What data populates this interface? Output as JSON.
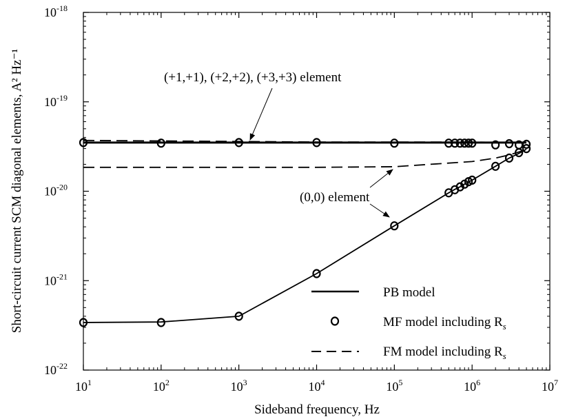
{
  "chart_data": {
    "type": "line",
    "xscale": "log",
    "yscale": "log",
    "xlim": [
      10,
      10000000
    ],
    "ylim": [
      1e-22,
      1e-18
    ],
    "xlabel": "Sideband frequency, Hz",
    "ylabel": "Short-circuit current SCM diagonal elements, A² Hz⁻¹",
    "grid": false,
    "legend_position": "bottom-right",
    "x_ticks": [
      {
        "value": 10,
        "base": "10",
        "exp": "1"
      },
      {
        "value": 100,
        "base": "10",
        "exp": "2"
      },
      {
        "value": 1000,
        "base": "10",
        "exp": "3"
      },
      {
        "value": 10000,
        "base": "10",
        "exp": "4"
      },
      {
        "value": 100000,
        "base": "10",
        "exp": "5"
      },
      {
        "value": 1000000,
        "base": "10",
        "exp": "6"
      },
      {
        "value": 10000000,
        "base": "10",
        "exp": "7"
      }
    ],
    "y_ticks": [
      {
        "value": 1e-22,
        "base": "10",
        "exp": "-22"
      },
      {
        "value": 1e-21,
        "base": "10",
        "exp": "-21"
      },
      {
        "value": 1e-20,
        "base": "10",
        "exp": "-20"
      },
      {
        "value": 1e-19,
        "base": "10",
        "exp": "-19"
      },
      {
        "value": 1e-18,
        "base": "10",
        "exp": "-18"
      }
    ],
    "series": [
      {
        "name": "PB model",
        "style": "solid",
        "curves": [
          {
            "x": [
              10,
              100,
              1000,
              10000,
              100000,
              500000,
              1000000,
              2000000,
              3000000,
              4000000,
              5000000
            ],
            "y": [
              3.5e-20,
              3.5e-20,
              3.5e-20,
              3.5e-20,
              3.5e-20,
              3.5e-20,
              3.5e-20,
              3.5e-20,
              3.5e-20,
              3.5e-20,
              3.5e-20
            ]
          },
          {
            "x": [
              10,
              100,
              1000,
              10000,
              100000,
              500000,
              600000,
              700000,
              800000,
              900000,
              1000000,
              2000000,
              3000000,
              4000000,
              5000000
            ],
            "y": [
              3.4e-22,
              3.45e-22,
              4e-22,
              1.2e-21,
              4.1e-21,
              9.6e-21,
              1.05e-20,
              1.12e-20,
              1.2e-20,
              1.27e-20,
              1.33e-20,
              1.9e-20,
              2.35e-20,
              2.65e-20,
              2.95e-20
            ]
          }
        ]
      },
      {
        "name": "MF model including Rs",
        "style": "markers",
        "curves": [
          {
            "x": [
              10,
              100,
              1000,
              10000,
              100000,
              500000,
              600000,
              700000,
              800000,
              900000,
              1000000,
              2000000,
              3000000,
              4000000,
              5000000
            ],
            "y": [
              3.5e-20,
              3.45e-20,
              3.5e-20,
              3.5e-20,
              3.45e-20,
              3.45e-20,
              3.45e-20,
              3.45e-20,
              3.45e-20,
              3.45e-20,
              3.45e-20,
              3.3e-20,
              3.4e-20,
              3.3e-20,
              3.35e-20
            ]
          },
          {
            "x": [
              10,
              100,
              1000,
              10000,
              100000,
              500000,
              600000,
              700000,
              800000,
              900000,
              1000000,
              2000000,
              3000000,
              4000000,
              5000000
            ],
            "y": [
              3.4e-22,
              3.4e-22,
              4e-22,
              1.2e-21,
              4.1e-21,
              9.6e-21,
              1.04e-20,
              1.12e-20,
              1.2e-20,
              1.28e-20,
              1.33e-20,
              1.9e-20,
              2.35e-20,
              2.7e-20,
              3e-20
            ]
          }
        ]
      },
      {
        "name": "FM model including Rs",
        "style": "dashed",
        "curves": [
          {
            "x": [
              10,
              100,
              1000,
              10000,
              100000,
              1000000,
              3000000,
              5000000
            ],
            "y": [
              3.7e-20,
              3.65e-20,
              3.6e-20,
              3.55e-20,
              3.55e-20,
              3.55e-20,
              3.5e-20,
              3.5e-20
            ]
          },
          {
            "x": [
              10,
              100,
              1000,
              10000,
              100000,
              1000000,
              2000000,
              3000000,
              4000000,
              5000000
            ],
            "y": [
              1.85e-20,
              1.85e-20,
              1.85e-20,
              1.85e-20,
              1.88e-20,
              2.15e-20,
              2.35e-20,
              2.55e-20,
              2.75e-20,
              2.9e-20
            ]
          }
        ]
      }
    ],
    "legend": [
      {
        "text": "PB model",
        "sub": "",
        "style": "solid"
      },
      {
        "text": "MF model including R",
        "sub": "s",
        "style": "marker"
      },
      {
        "text": "FM model including R",
        "sub": "s",
        "style": "dashed"
      }
    ],
    "annotations": [
      {
        "text": "(+1,+1), (+2,+2), (+3,+3) element",
        "points_to": {
          "x": 2000,
          "y": 3.5e-20
        }
      },
      {
        "text": "(0,0) element",
        "points_to": {
          "x": 100000,
          "y": 1.88e-20
        }
      }
    ]
  }
}
